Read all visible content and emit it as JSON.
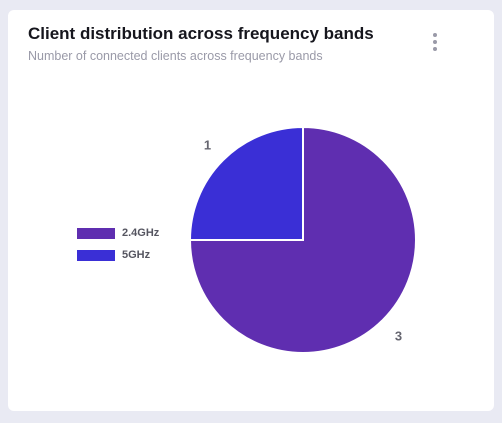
{
  "card": {
    "title": "Client distribution across frequency bands",
    "subtitle": "Number of connected clients across frequency bands",
    "menu_icon": "more-vertical-icon"
  },
  "chart_data": {
    "type": "pie",
    "categories": [
      "2.4GHz",
      "5GHz"
    ],
    "values": [
      3,
      1
    ],
    "colors": [
      "#5f2eb0",
      "#3a2fd6"
    ],
    "title": "Client distribution across frequency bands",
    "subtitle": "Number of connected clients across frequency bands",
    "legend_position": "left",
    "data_labels": [
      "3",
      "1"
    ],
    "start_angle_deg": 0,
    "direction": "clockwise"
  }
}
